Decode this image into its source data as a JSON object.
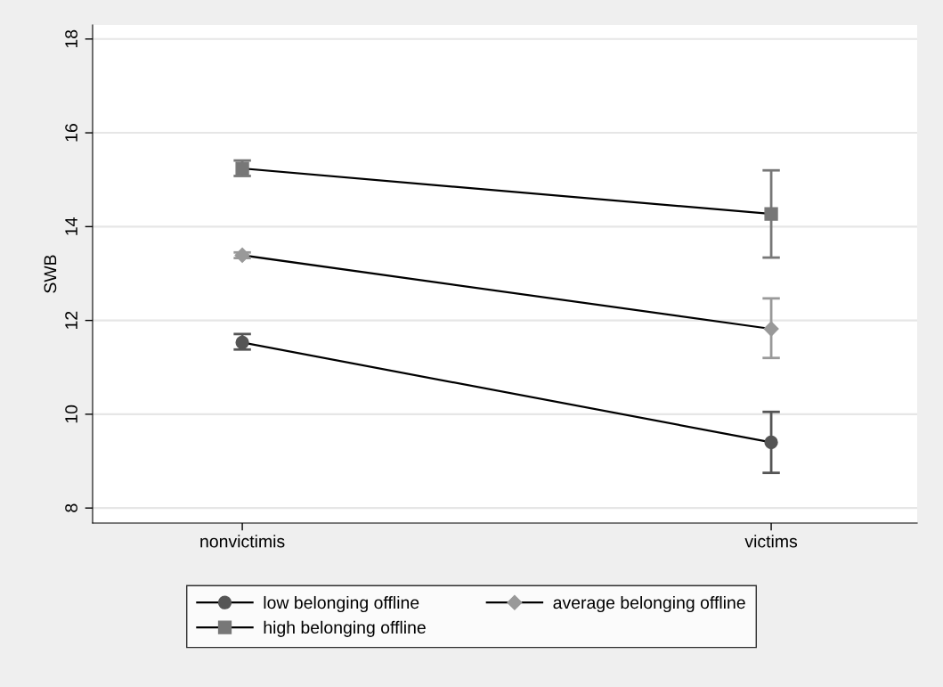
{
  "chart_data": {
    "type": "line",
    "ylabel": "SWB",
    "categories": [
      "nonvictimis",
      "victims"
    ],
    "series": [
      {
        "name": "low belonging offline",
        "color": "#555555",
        "marker": "circle",
        "values": [
          11.53,
          9.4
        ],
        "errors": [
          [
            11.38,
            11.71
          ],
          [
            8.75,
            10.05
          ]
        ]
      },
      {
        "name": "average belonging offline",
        "color": "#999999",
        "marker": "diamond",
        "values": [
          13.39,
          11.82
        ],
        "errors": [
          [
            13.33,
            13.45
          ],
          [
            11.2,
            12.47
          ]
        ]
      },
      {
        "name": "high belonging offline",
        "color": "#777777",
        "marker": "square",
        "values": [
          15.24,
          14.27
        ],
        "errors": [
          [
            15.08,
            15.41
          ],
          [
            13.34,
            15.2
          ]
        ]
      }
    ],
    "ylim": [
      7.68,
      18.3
    ],
    "yticks": [
      8,
      10,
      12,
      14,
      16,
      18
    ],
    "grid": "y",
    "legend": "bottom"
  }
}
